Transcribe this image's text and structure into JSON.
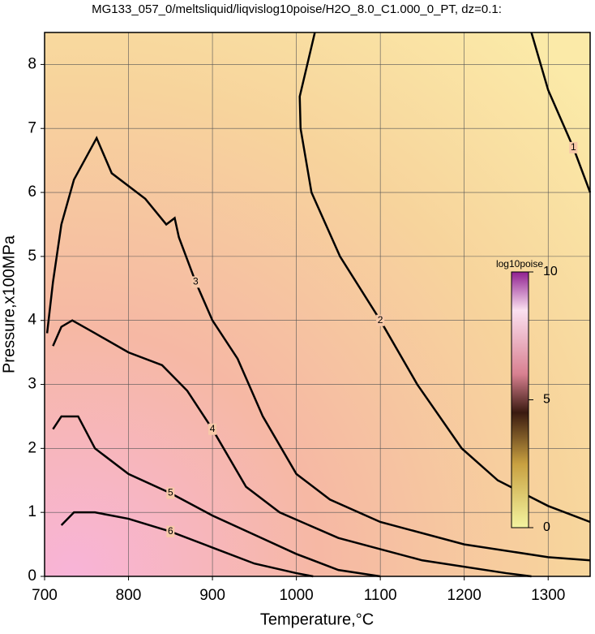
{
  "chart_data": {
    "type": "contour",
    "title": "MG133_057_0/meltsliquid/liqvislog10poise/H2O_8.0_C1.000_0_PT, dz=0.1:",
    "x_label": "Temperature,°C",
    "y_label": "Pressure,x100MPa",
    "xlim": [
      700,
      1350
    ],
    "ylim": [
      0,
      8.5
    ],
    "xticks": [
      700,
      800,
      900,
      1000,
      1100,
      1200,
      1300
    ],
    "yticks": [
      0,
      1,
      2,
      3,
      4,
      5,
      6,
      7,
      8
    ],
    "grid": true,
    "contours": [
      {
        "level": 1,
        "x": [
          1280,
          1300,
          1330,
          1350
        ],
        "y": [
          8.5,
          7.6,
          6.7,
          6.0
        ]
      },
      {
        "level": 2,
        "x": [
          1022,
          1004,
          1005,
          1018,
          1052,
          1100,
          1144,
          1197,
          1240,
          1300,
          1350
        ],
        "y": [
          8.5,
          7.5,
          7,
          6,
          5,
          4,
          3,
          2,
          1.5,
          1.1,
          0.85
        ]
      },
      {
        "level": 3,
        "x": [
          703,
          710,
          720,
          735,
          762,
          780,
          820,
          845,
          855,
          860,
          880,
          900,
          930,
          960,
          1000,
          1040,
          1100,
          1200,
          1300,
          1350
        ],
        "y": [
          3.8,
          4.6,
          5.5,
          6.2,
          6.85,
          6.3,
          5.9,
          5.5,
          5.6,
          5.3,
          4.6,
          4.0,
          3.4,
          2.5,
          1.6,
          1.2,
          0.85,
          0.5,
          0.3,
          0.25
        ]
      },
      {
        "level": 4,
        "x": [
          710,
          720,
          733,
          760,
          800,
          840,
          870,
          900,
          940,
          980,
          1050,
          1150,
          1250,
          1280
        ],
        "y": [
          3.6,
          3.9,
          4.0,
          3.8,
          3.5,
          3.3,
          2.9,
          2.3,
          1.4,
          1.0,
          0.6,
          0.25,
          0.05,
          0
        ]
      },
      {
        "level": 5,
        "x": [
          710,
          720,
          740,
          760,
          800,
          850,
          900,
          950,
          1000,
          1050,
          1100
        ],
        "y": [
          2.3,
          2.5,
          2.5,
          2.0,
          1.6,
          1.3,
          0.95,
          0.65,
          0.35,
          0.1,
          0
        ]
      },
      {
        "level": 6,
        "x": [
          720,
          735,
          760,
          800,
          850,
          900,
          950,
          1000,
          1020
        ],
        "y": [
          0.8,
          1.0,
          1.0,
          0.9,
          0.7,
          0.45,
          0.2,
          0.05,
          0
        ]
      }
    ],
    "colorbar": {
      "label": "log10poise",
      "lim": [
        0,
        10
      ],
      "ticks": [
        0,
        5,
        10
      ]
    }
  }
}
